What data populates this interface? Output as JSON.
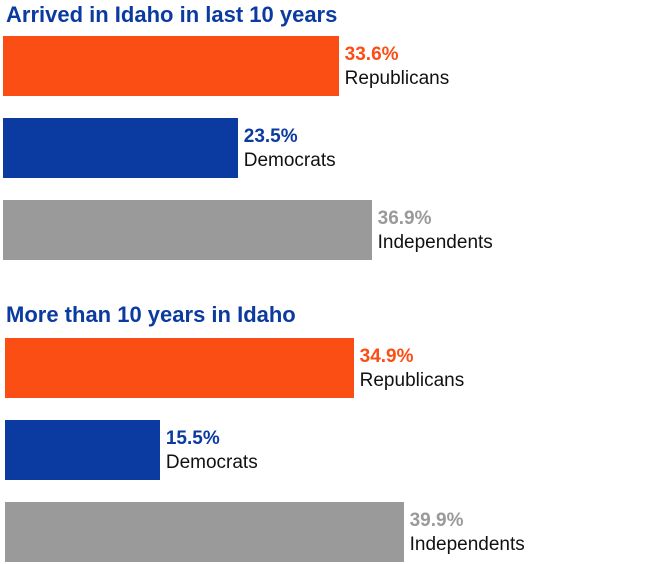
{
  "chart_data": [
    {
      "type": "bar",
      "orientation": "horizontal",
      "title": "Arrived in Idaho in last 10 years",
      "categories": [
        "Republicans",
        "Democrats",
        "Independents"
      ],
      "values": [
        33.6,
        23.5,
        36.9
      ],
      "value_labels": [
        "33.6%",
        "23.5%",
        "36.9%"
      ],
      "colors": [
        "#fb4e14",
        "#0b3aa0",
        "#9a9a9a"
      ],
      "xlim": [
        0,
        55
      ],
      "grid": false,
      "legend": "none"
    },
    {
      "type": "bar",
      "orientation": "horizontal",
      "title": "More than 10 years in Idaho",
      "categories": [
        "Republicans",
        "Democrats",
        "Independents"
      ],
      "values": [
        34.9,
        15.5,
        39.9
      ],
      "value_labels": [
        "34.9%",
        "15.5%",
        "39.9%"
      ],
      "colors": [
        "#fb4e14",
        "#0b3aa0",
        "#9a9a9a"
      ],
      "xlim": [
        0,
        55
      ],
      "grid": false,
      "legend": "none"
    }
  ]
}
